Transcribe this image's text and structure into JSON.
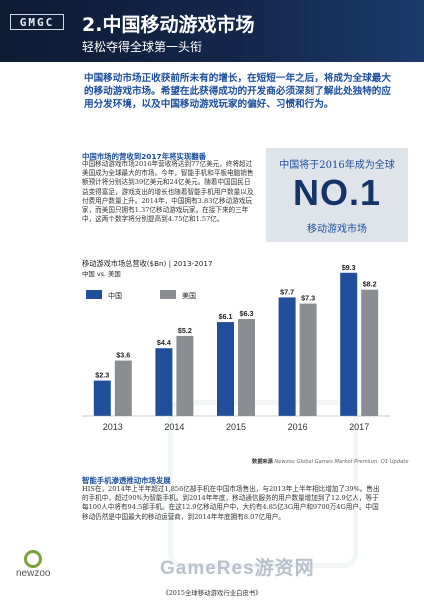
{
  "header": {
    "logo_text": "GMGC",
    "section_title": "2.中国移动游戏市场",
    "section_subtitle": "轻松夺得全球第一头衔"
  },
  "intro": {
    "text": "中国移动市场正收获前所未有的增长，在短短一年之后，将成为全球最大的移动游戏市场。希望在此获得成功的开发商必须深刻了解此处独特的应用分发环境，以及中国移动游戏玩家的偏好、习惯和行为。"
  },
  "stat_box": {
    "lead": "中国将于2016年成为全球",
    "big": "NO.1",
    "tail": "移动游戏市场"
  },
  "revenue_block": {
    "heading": "中国市场的营收到2017年将实现翻番",
    "body": "中国移动游戏市场2016年营收将达到77亿美元，终将超过美国成为全球最大的市场。今年，智能手机和平板电脑销售额预计将分别达到39亿美元和24亿美元。随着中国国民日益变得富足，游戏支出的增长也随着智能手机用户数量以及付费用户数量上升。2014年，中国拥有3.83亿移动游戏玩家，而美国只拥有1.37亿移动游戏玩家。在接下来的三年中，这两个数字将分别提高到4.75亿和1.57亿。"
  },
  "chart_data": {
    "type": "bar",
    "title": "移动游戏市场总营收($Bn) | 2013-2017",
    "subtitle": "中国 vs. 美国",
    "categories": [
      "2013",
      "2014",
      "2015",
      "2016",
      "2017"
    ],
    "series": [
      {
        "name": "中国",
        "values": [
          2.3,
          4.4,
          6.1,
          7.7,
          9.3
        ],
        "labels": [
          "$2.3",
          "$4.4",
          "$6.1",
          "$7.7",
          "$9.3"
        ],
        "color": "#1f4f9a"
      },
      {
        "name": "美国",
        "values": [
          3.6,
          5.2,
          6.3,
          7.3,
          8.2
        ],
        "labels": [
          "$3.6",
          "$5.2",
          "$6.3",
          "$7.3",
          "$8.2"
        ],
        "color": "#8a8d92"
      }
    ],
    "ylim": [
      0,
      10
    ],
    "legend": "top-left",
    "grid": false
  },
  "source": {
    "label": "数据来源",
    "text": "Newzoo Global Games Market Premium, Q1 Update"
  },
  "smartphone_block": {
    "heading": "智能手机渗透推动市场发展",
    "body": "HIS在，2014年上半年超过1,856亿部手机在中国市场售出，与2013年上半年相比增加了39%。售出的手机中，超过90%为智能手机。到2014年年底，移动通信服务的用户数量增加到了12.9亿人，等于每100人中将有94.5部手机。在这12.9亿移动用户中，大约有4.85亿3G用户和9700万4G用户。中国移动仍然是中国最大的移动运营商，到2014年年底拥有8.07亿用户。"
  },
  "brand": {
    "name": "newzoo"
  },
  "watermark": {
    "text": "GameRes游资网"
  },
  "footer": {
    "text": "《2015全球移动游戏行业白皮书》"
  }
}
